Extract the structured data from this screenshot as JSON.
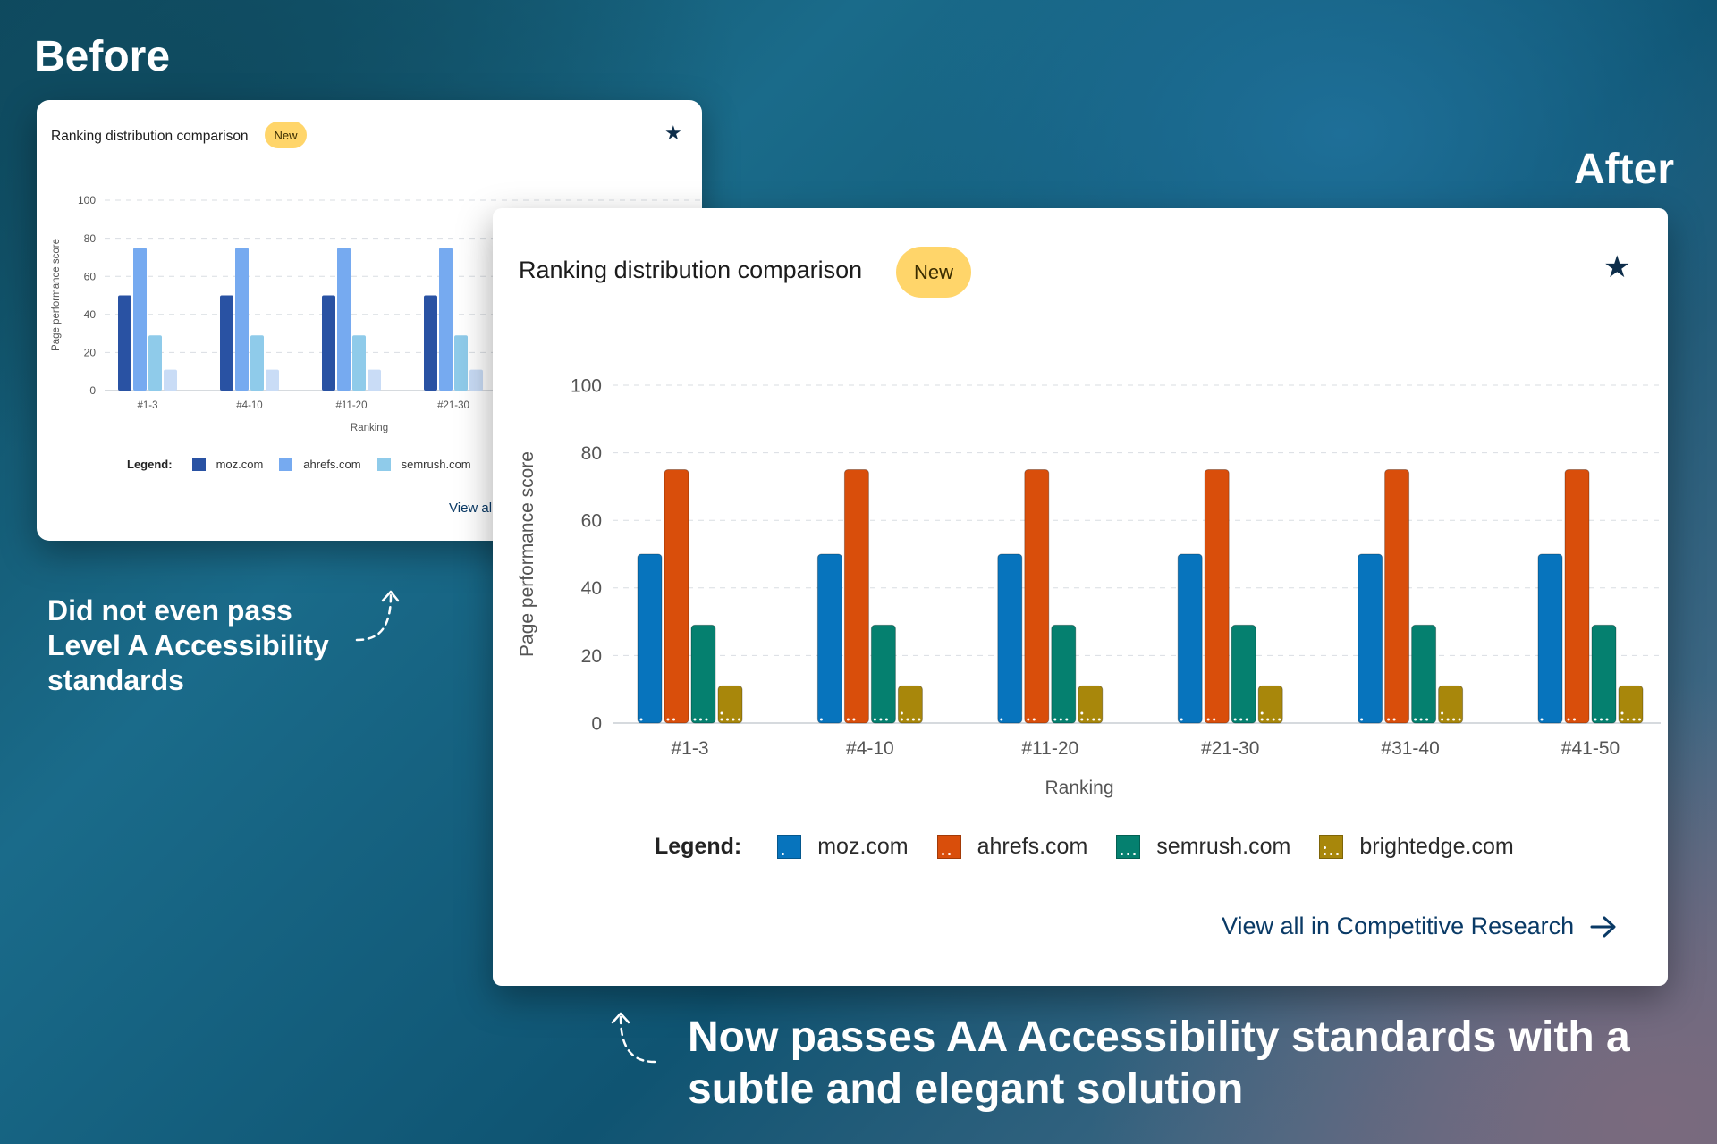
{
  "labels": {
    "before": "Before",
    "after": "After"
  },
  "cards": {
    "before": {
      "title": "Ranking distribution comparison",
      "badge": "New",
      "link": "View al"
    },
    "after": {
      "title": "Ranking distribution comparison",
      "badge": "New",
      "link": "View all in Competitive Research"
    }
  },
  "notes": {
    "before": "Did not even pass Level A Accessibility standards",
    "after": "Now passes AA Accessibility standards with a subtle and elegant solution"
  },
  "chart_data": [
    {
      "type": "bar",
      "id": "before",
      "categories": [
        "#1-3",
        "#4-10",
        "#11-20",
        "#21-30"
      ],
      "series": [
        {
          "name": "moz.com",
          "values": [
            50,
            50,
            50,
            50
          ],
          "color": "#2952a3"
        },
        {
          "name": "ahrefs.com",
          "values": [
            75,
            75,
            75,
            75
          ],
          "color": "#76aaf0"
        },
        {
          "name": "semrush.com",
          "values": [
            29,
            29,
            29,
            29
          ],
          "color": "#8fcbea"
        },
        {
          "name": "",
          "values": [
            11,
            11,
            11,
            11
          ],
          "color": "#c9dcf6"
        }
      ],
      "xlabel": "Ranking",
      "ylabel": "Page performance score",
      "ylim": [
        0,
        100
      ],
      "yticks": [
        0,
        20,
        40,
        60,
        80,
        100
      ],
      "grid": true,
      "legend_title": "Legend:",
      "legend_placement": "bottom"
    },
    {
      "type": "bar",
      "id": "after",
      "categories": [
        "#1-3",
        "#4-10",
        "#11-20",
        "#21-30",
        "#31-40",
        "#41-50"
      ],
      "series": [
        {
          "name": "moz.com",
          "values": [
            50,
            50,
            50,
            50,
            50,
            50
          ],
          "color": "#0774bd"
        },
        {
          "name": "ahrefs.com",
          "values": [
            75,
            75,
            75,
            75,
            75,
            75
          ],
          "color": "#d94e0b"
        },
        {
          "name": "semrush.com",
          "values": [
            29,
            29,
            29,
            29,
            29,
            29
          ],
          "color": "#05806f"
        },
        {
          "name": "brightedge.com",
          "values": [
            11,
            11,
            11,
            11,
            11,
            11
          ],
          "color": "#a8870b"
        }
      ],
      "xlabel": "Ranking",
      "ylabel": "Page performance score",
      "ylim": [
        0,
        100
      ],
      "yticks": [
        0,
        20,
        40,
        60,
        80,
        100
      ],
      "grid": true,
      "legend_title": "Legend:",
      "legend_placement": "bottom"
    }
  ]
}
